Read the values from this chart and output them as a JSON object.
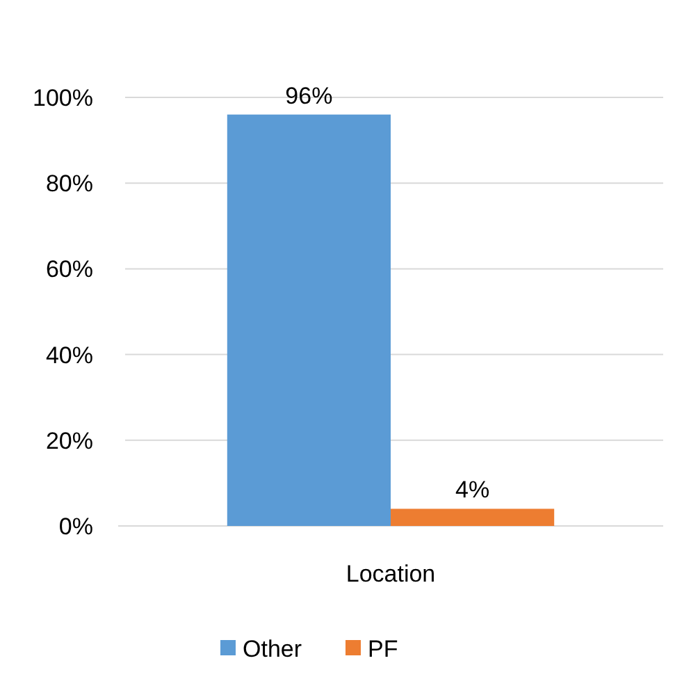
{
  "chart_data": {
    "type": "bar",
    "categories": [
      "Location"
    ],
    "series": [
      {
        "name": "Other",
        "color": "#5b9bd5",
        "values": [
          96
        ],
        "value_labels": [
          "96%"
        ]
      },
      {
        "name": "PF",
        "color": "#ed7d31",
        "values": [
          4
        ],
        "value_labels": [
          "4%"
        ]
      }
    ],
    "ylim": [
      0,
      100
    ],
    "yticks": [
      {
        "value": 0,
        "label": "0%"
      },
      {
        "value": 20,
        "label": "20%"
      },
      {
        "value": 40,
        "label": "40%"
      },
      {
        "value": 60,
        "label": "60%"
      },
      {
        "value": 80,
        "label": "80%"
      },
      {
        "value": 100,
        "label": "100%"
      }
    ],
    "grid": "y",
    "legend": "bottom"
  }
}
